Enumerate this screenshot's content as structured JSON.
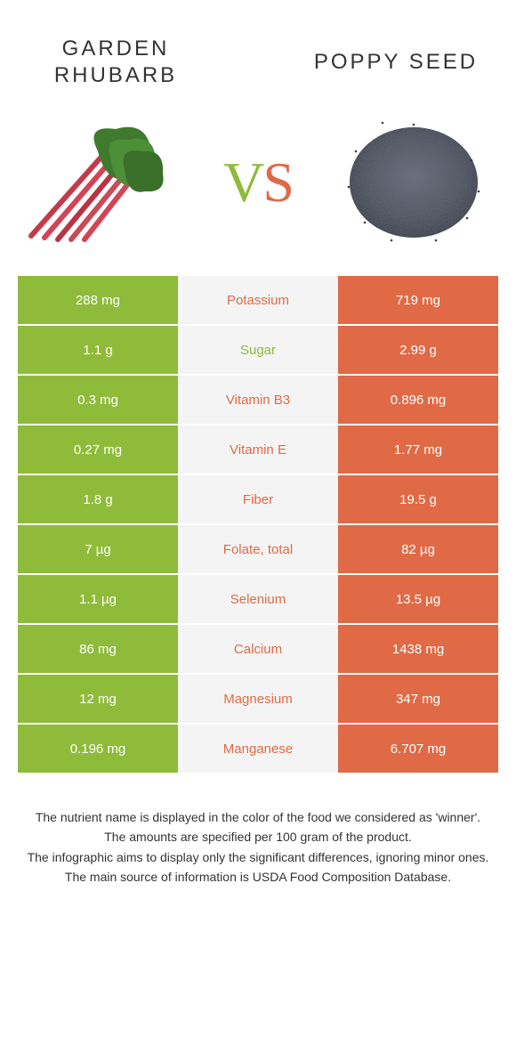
{
  "header": {
    "left_title": "GARDEN RHUBARB",
    "right_title": "POPPY SEED",
    "vs_v": "V",
    "vs_s": "S"
  },
  "colors": {
    "left_bar": "#8fbb3a",
    "right_bar": "#e06a46",
    "mid_bg": "#f4f4f4",
    "nutrient_left_color": "#8fbb3a",
    "nutrient_right_color": "#e06a46",
    "cell_text": "#ffffff"
  },
  "table": {
    "rows": [
      {
        "left": "288 mg",
        "label": "Potassium",
        "right": "719 mg",
        "winner": "right"
      },
      {
        "left": "1.1 g",
        "label": "Sugar",
        "right": "2.99 g",
        "winner": "left"
      },
      {
        "left": "0.3 mg",
        "label": "Vitamin B3",
        "right": "0.896 mg",
        "winner": "right"
      },
      {
        "left": "0.27 mg",
        "label": "Vitamin E",
        "right": "1.77 mg",
        "winner": "right"
      },
      {
        "left": "1.8 g",
        "label": "Fiber",
        "right": "19.5 g",
        "winner": "right"
      },
      {
        "left": "7 µg",
        "label": "Folate, total",
        "right": "82 µg",
        "winner": "right"
      },
      {
        "left": "1.1 µg",
        "label": "Selenium",
        "right": "13.5 µg",
        "winner": "right"
      },
      {
        "left": "86 mg",
        "label": "Calcium",
        "right": "1438 mg",
        "winner": "right"
      },
      {
        "left": "12 mg",
        "label": "Magnesium",
        "right": "347 mg",
        "winner": "right"
      },
      {
        "left": "0.196 mg",
        "label": "Manganese",
        "right": "6.707 mg",
        "winner": "right"
      }
    ]
  },
  "footer": {
    "line1": "The nutrient name is displayed in the color of the food we considered as 'winner'.",
    "line2": "The amounts are specified per 100 gram of the product.",
    "line3": "The infographic aims to display only the significant differences, ignoring minor ones.",
    "line4": "The main source of information is USDA Food Composition Database."
  }
}
